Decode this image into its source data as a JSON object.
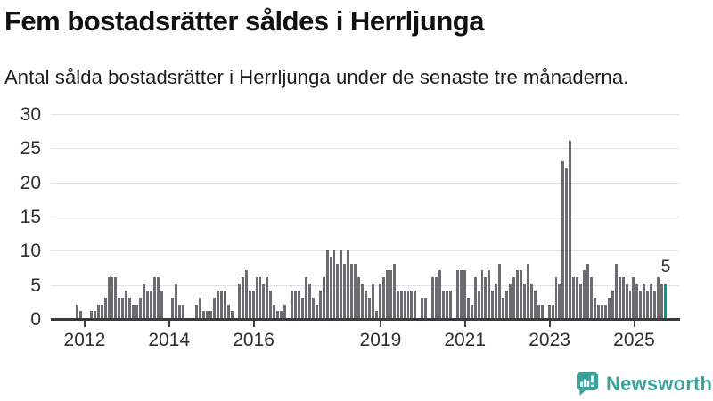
{
  "header": {
    "title": "Fem bostadsrätter såldes i Herrljunga",
    "subtitle": "Antal sålda bostadsrätter i Herrljunga under de senaste tre månaderna."
  },
  "chart_data": {
    "type": "bar",
    "title": "Fem bostadsrätter såldes i Herrljunga",
    "subtitle": "Antal sålda bostadsrätter i Herrljunga under de senaste tre månaderna.",
    "period": "monthly rolling 3-month totals, 2011-11 to 2025-10",
    "values": [
      2,
      1,
      0,
      0,
      1,
      1,
      2,
      2,
      3,
      6,
      6,
      6,
      3,
      3,
      4,
      3,
      2,
      2,
      3,
      5,
      4,
      4,
      6,
      6,
      4,
      0,
      0,
      3,
      5,
      2,
      2,
      0,
      0,
      0,
      2,
      3,
      1,
      1,
      1,
      3,
      4,
      4,
      4,
      2,
      1,
      0,
      5,
      6,
      7,
      4,
      4,
      6,
      6,
      5,
      6,
      4,
      2,
      1,
      1,
      2,
      0,
      4,
      4,
      4,
      3,
      6,
      5,
      3,
      2,
      4,
      6,
      10,
      9,
      10,
      8,
      10,
      8,
      10,
      8,
      8,
      6,
      5,
      4,
      3,
      5,
      1,
      5,
      6,
      7,
      7,
      8,
      4,
      4,
      4,
      4,
      4,
      4,
      0,
      3,
      3,
      0,
      6,
      6,
      7,
      4,
      4,
      4,
      0,
      7,
      7,
      7,
      3,
      2,
      6,
      4,
      7,
      6,
      7,
      4,
      5,
      8,
      3,
      4,
      5,
      6,
      7,
      7,
      5,
      8,
      5,
      4,
      2,
      2,
      0,
      2,
      2,
      6,
      5,
      23,
      22,
      26,
      6,
      6,
      5,
      7,
      8,
      6,
      3,
      2,
      2,
      2,
      3,
      4,
      8,
      6,
      6,
      5,
      4,
      6,
      5,
      4,
      5,
      4,
      5,
      4,
      6,
      5,
      5
    ],
    "highlight_index": 167,
    "annotation": "5",
    "ylim": [
      0,
      30
    ],
    "yticks": [
      0,
      5,
      10,
      15,
      20,
      25,
      30
    ],
    "xticks": [
      {
        "label": "2012",
        "index": 2
      },
      {
        "label": "2014",
        "index": 26
      },
      {
        "label": "2016",
        "index": 50
      },
      {
        "label": "2019",
        "index": 86
      },
      {
        "label": "2021",
        "index": 110
      },
      {
        "label": "2023",
        "index": 134
      },
      {
        "label": "2025",
        "index": 158
      }
    ],
    "grid": true,
    "legend": "none",
    "bar_color": "#6c6c70",
    "highlight_color": "#009a94",
    "grid_color": "#e3e3e5",
    "axis_color": "#3a3a3e"
  },
  "footer": {
    "brand": "Newsworthy",
    "brand_color": "#3aa29a"
  }
}
